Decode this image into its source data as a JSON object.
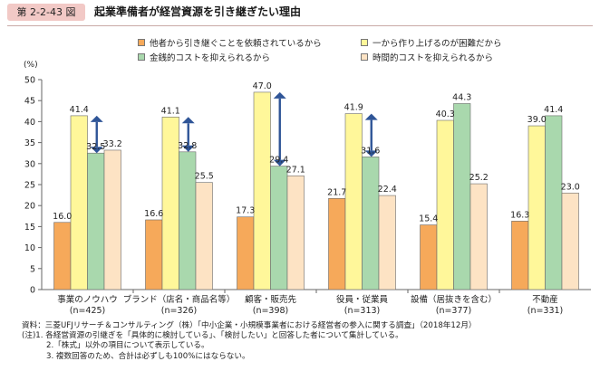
{
  "header": {
    "figure_number": "第 2-2-43 図",
    "title": "起業準備者が経営資源を引き継ぎたい理由"
  },
  "chart_data": {
    "type": "bar",
    "ylabel": "(%)",
    "ylim": [
      0,
      50
    ],
    "yticks": [
      0,
      5,
      10,
      15,
      20,
      25,
      30,
      35,
      40,
      45,
      50
    ],
    "gridlines": false,
    "legend_position": "top",
    "categories": [
      {
        "label": "事業のノウハウ",
        "n": "(n=425)"
      },
      {
        "label": "ブランド（店名・商品名等）",
        "n": "(n=326)"
      },
      {
        "label": "顧客・販売先",
        "n": "(n=398)"
      },
      {
        "label": "役員・従業員",
        "n": "(n=313)"
      },
      {
        "label": "設備（居抜きを含む）",
        "n": "(n=377)"
      },
      {
        "label": "不動産",
        "n": "(n=331)"
      }
    ],
    "series": [
      {
        "name": "他者から引き継ぐことを依頼されているから",
        "color": "#f6a95a",
        "values": [
          16.0,
          16.6,
          17.3,
          21.7,
          15.4,
          16.3
        ],
        "labels": [
          "16.0",
          "16.6",
          "17.3",
          "21.7",
          "15.4",
          "16.3"
        ]
      },
      {
        "name": "一から作り上げるのが困難だから",
        "color": "#fff79a",
        "values": [
          41.4,
          41.1,
          47.0,
          41.9,
          40.3,
          39.0
        ],
        "labels": [
          "41.4",
          "41.1",
          "47.0",
          "41.9",
          "40.3",
          "39.0"
        ]
      },
      {
        "name": "金銭的コストを抑えられるから",
        "color": "#a9d8ad",
        "values": [
          32.5,
          32.8,
          29.4,
          31.6,
          44.3,
          41.4
        ],
        "labels": [
          "32.5",
          "32.8",
          "29.4",
          "31.6",
          "44.3",
          "41.4"
        ]
      },
      {
        "name": "時間的コストを抑えられるから",
        "color": "#fde3c4",
        "values": [
          33.2,
          25.5,
          27.1,
          22.4,
          25.2,
          23.0
        ],
        "labels": [
          "33.2",
          "25.5",
          "27.1",
          "22.4",
          "25.2",
          "23.0"
        ]
      }
    ],
    "arrows": [
      {
        "category": 0,
        "from_series": 1,
        "to_series": 2
      },
      {
        "category": 1,
        "from_series": 1,
        "to_series": 2
      },
      {
        "category": 2,
        "from_series": 1,
        "to_series": 2
      },
      {
        "category": 3,
        "from_series": 1,
        "to_series": 2
      }
    ],
    "arrow_color": "#2f5597"
  },
  "notes": [
    "資料：三菱UFJリサーチ＆コンサルティング（株）「中小企業・小規模事業者における経営者の参入に関する調査」（2018年12月）",
    "(注)1. 各経営資源の引継ぎを「具体的に検討している」、「検討したい」と回答した者について集計している。",
    "2.「株式」以外の項目について表示している。",
    "3. 複数回答のため、合計は必ずしも100%にはならない。"
  ]
}
